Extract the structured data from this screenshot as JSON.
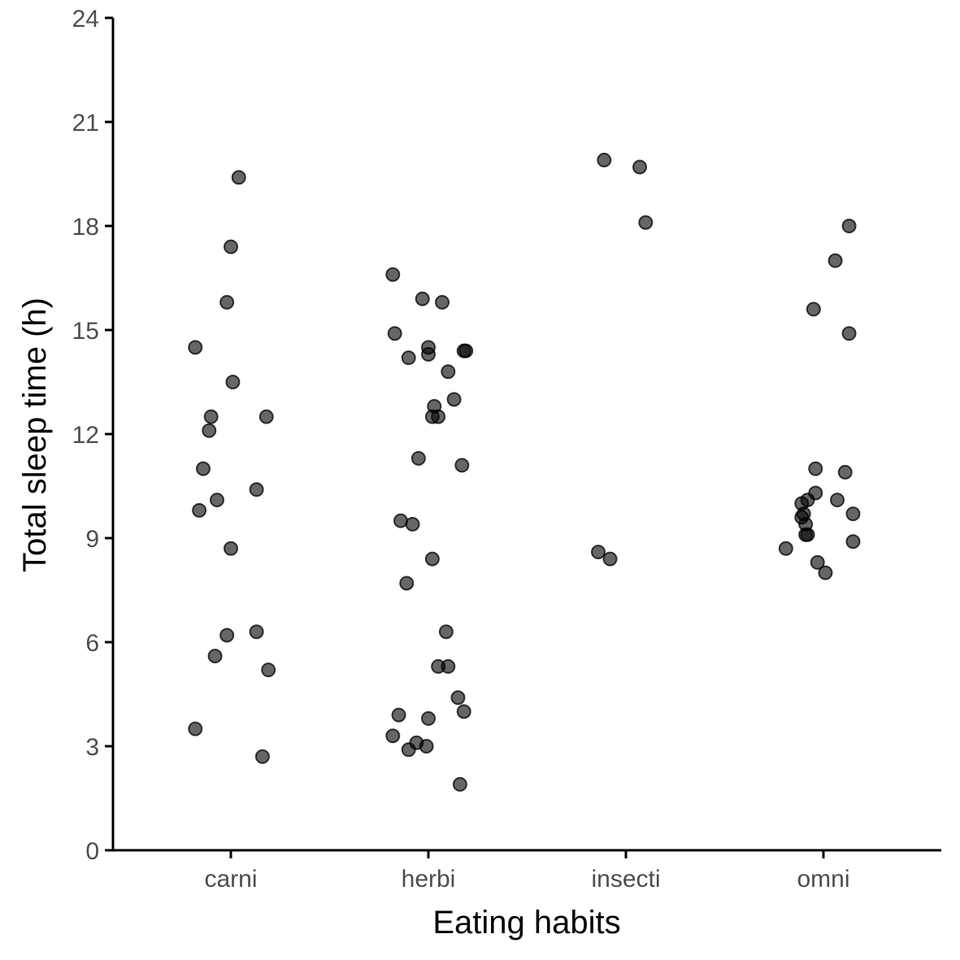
{
  "chart_data": {
    "type": "scatter",
    "title": "",
    "xlabel": "Eating habits",
    "ylabel": "Total sleep time (h)",
    "categories": [
      "carni",
      "herbi",
      "insecti",
      "omni"
    ],
    "ylim": [
      0,
      24
    ],
    "yticks": [
      0,
      3,
      6,
      9,
      12,
      15,
      18,
      21,
      24
    ],
    "grid": false,
    "legend": "none",
    "point_color": "#000000",
    "point_opacity": 0.6,
    "points": [
      {
        "category": "carni",
        "jitter": 0.04,
        "y": 19.4
      },
      {
        "category": "carni",
        "jitter": 0.0,
        "y": 17.4
      },
      {
        "category": "carni",
        "jitter": -0.02,
        "y": 15.8
      },
      {
        "category": "carni",
        "jitter": -0.18,
        "y": 14.5
      },
      {
        "category": "carni",
        "jitter": 0.01,
        "y": 13.5
      },
      {
        "category": "carni",
        "jitter": -0.1,
        "y": 12.5
      },
      {
        "category": "carni",
        "jitter": 0.18,
        "y": 12.5
      },
      {
        "category": "carni",
        "jitter": -0.11,
        "y": 12.1
      },
      {
        "category": "carni",
        "jitter": -0.14,
        "y": 11.0
      },
      {
        "category": "carni",
        "jitter": 0.13,
        "y": 10.4
      },
      {
        "category": "carni",
        "jitter": -0.07,
        "y": 10.1
      },
      {
        "category": "carni",
        "jitter": -0.16,
        "y": 9.8
      },
      {
        "category": "carni",
        "jitter": 0.0,
        "y": 8.7
      },
      {
        "category": "carni",
        "jitter": 0.13,
        "y": 6.3
      },
      {
        "category": "carni",
        "jitter": -0.02,
        "y": 6.2
      },
      {
        "category": "carni",
        "jitter": -0.08,
        "y": 5.6
      },
      {
        "category": "carni",
        "jitter": 0.19,
        "y": 5.2
      },
      {
        "category": "carni",
        "jitter": -0.18,
        "y": 3.5
      },
      {
        "category": "carni",
        "jitter": 0.16,
        "y": 2.7
      },
      {
        "category": "herbi",
        "jitter": -0.18,
        "y": 16.6
      },
      {
        "category": "herbi",
        "jitter": -0.03,
        "y": 15.9
      },
      {
        "category": "herbi",
        "jitter": 0.07,
        "y": 15.8
      },
      {
        "category": "herbi",
        "jitter": -0.17,
        "y": 14.9
      },
      {
        "category": "herbi",
        "jitter": 0.0,
        "y": 14.5
      },
      {
        "category": "herbi",
        "jitter": 0.18,
        "y": 14.4
      },
      {
        "category": "herbi",
        "jitter": 0.19,
        "y": 14.4
      },
      {
        "category": "herbi",
        "jitter": 0.0,
        "y": 14.3
      },
      {
        "category": "herbi",
        "jitter": -0.1,
        "y": 14.2
      },
      {
        "category": "herbi",
        "jitter": 0.1,
        "y": 13.8
      },
      {
        "category": "herbi",
        "jitter": 0.13,
        "y": 13.0
      },
      {
        "category": "herbi",
        "jitter": 0.03,
        "y": 12.8
      },
      {
        "category": "herbi",
        "jitter": 0.05,
        "y": 12.5
      },
      {
        "category": "herbi",
        "jitter": 0.02,
        "y": 12.5
      },
      {
        "category": "herbi",
        "jitter": -0.05,
        "y": 11.3
      },
      {
        "category": "herbi",
        "jitter": 0.17,
        "y": 11.1
      },
      {
        "category": "herbi",
        "jitter": -0.14,
        "y": 9.5
      },
      {
        "category": "herbi",
        "jitter": -0.08,
        "y": 9.4
      },
      {
        "category": "herbi",
        "jitter": 0.02,
        "y": 8.4
      },
      {
        "category": "herbi",
        "jitter": -0.11,
        "y": 7.7
      },
      {
        "category": "herbi",
        "jitter": 0.09,
        "y": 6.3
      },
      {
        "category": "herbi",
        "jitter": 0.05,
        "y": 5.3
      },
      {
        "category": "herbi",
        "jitter": 0.1,
        "y": 5.3
      },
      {
        "category": "herbi",
        "jitter": 0.15,
        "y": 4.4
      },
      {
        "category": "herbi",
        "jitter": 0.18,
        "y": 4.0
      },
      {
        "category": "herbi",
        "jitter": -0.15,
        "y": 3.9
      },
      {
        "category": "herbi",
        "jitter": 0.0,
        "y": 3.8
      },
      {
        "category": "herbi",
        "jitter": -0.18,
        "y": 3.3
      },
      {
        "category": "herbi",
        "jitter": -0.06,
        "y": 3.1
      },
      {
        "category": "herbi",
        "jitter": -0.01,
        "y": 3.0
      },
      {
        "category": "herbi",
        "jitter": -0.1,
        "y": 2.9
      },
      {
        "category": "herbi",
        "jitter": 0.16,
        "y": 1.9
      },
      {
        "category": "insecti",
        "jitter": -0.11,
        "y": 19.9
      },
      {
        "category": "insecti",
        "jitter": 0.07,
        "y": 19.7
      },
      {
        "category": "insecti",
        "jitter": 0.1,
        "y": 18.1
      },
      {
        "category": "insecti",
        "jitter": -0.14,
        "y": 8.6
      },
      {
        "category": "insecti",
        "jitter": -0.08,
        "y": 8.4
      },
      {
        "category": "omni",
        "jitter": 0.13,
        "y": 18.0
      },
      {
        "category": "omni",
        "jitter": 0.06,
        "y": 17.0
      },
      {
        "category": "omni",
        "jitter": -0.05,
        "y": 15.6
      },
      {
        "category": "omni",
        "jitter": 0.13,
        "y": 14.9
      },
      {
        "category": "omni",
        "jitter": -0.04,
        "y": 11.0
      },
      {
        "category": "omni",
        "jitter": 0.11,
        "y": 10.9
      },
      {
        "category": "omni",
        "jitter": -0.04,
        "y": 10.3
      },
      {
        "category": "omni",
        "jitter": -0.11,
        "y": 10.0
      },
      {
        "category": "omni",
        "jitter": -0.08,
        "y": 10.1
      },
      {
        "category": "omni",
        "jitter": 0.07,
        "y": 10.1
      },
      {
        "category": "omni",
        "jitter": -0.1,
        "y": 9.7
      },
      {
        "category": "omni",
        "jitter": -0.11,
        "y": 9.6
      },
      {
        "category": "omni",
        "jitter": -0.09,
        "y": 9.4
      },
      {
        "category": "omni",
        "jitter": 0.15,
        "y": 9.7
      },
      {
        "category": "omni",
        "jitter": -0.08,
        "y": 9.1
      },
      {
        "category": "omni",
        "jitter": -0.09,
        "y": 9.1
      },
      {
        "category": "omni",
        "jitter": -0.19,
        "y": 8.7
      },
      {
        "category": "omni",
        "jitter": 0.15,
        "y": 8.9
      },
      {
        "category": "omni",
        "jitter": -0.03,
        "y": 8.3
      },
      {
        "category": "omni",
        "jitter": 0.01,
        "y": 8.0
      }
    ]
  }
}
